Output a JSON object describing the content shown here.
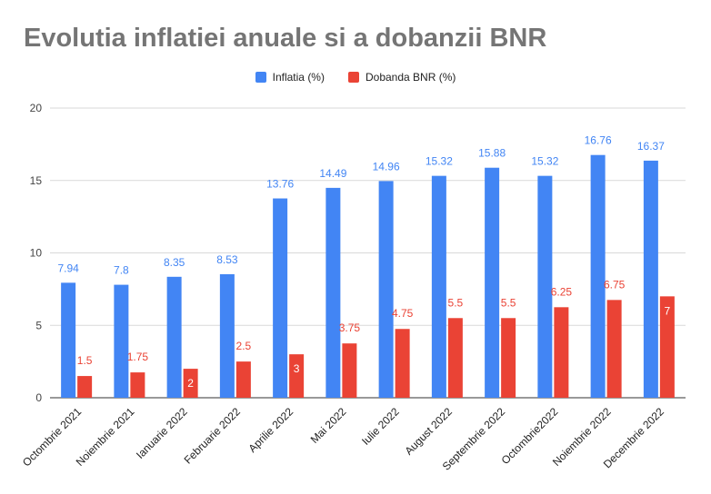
{
  "chart_data": {
    "type": "bar",
    "title": "Evolutia inflatiei anuale si a dobanzii BNR",
    "xlabel": "",
    "ylabel": "",
    "ylim": [
      0,
      20
    ],
    "yticks": [
      0,
      5,
      10,
      15,
      20
    ],
    "grid": true,
    "legend_position": "top",
    "categories": [
      "Octombrie 2021",
      "Noiembrie 2021",
      "Ianuarie 2022",
      "Februarie 2022",
      "Aprilie 2022",
      "Mai 2022",
      "Iulie 2022",
      "August 2022",
      "Septembrie 2022",
      "Octombrie2022",
      "Noiembrie 2022",
      "Decembrie 2022"
    ],
    "series": [
      {
        "name": "Inflatia (%)",
        "color": "#4285F4",
        "values": [
          7.94,
          7.8,
          8.35,
          8.53,
          13.76,
          14.49,
          14.96,
          15.32,
          15.88,
          15.32,
          16.76,
          16.37
        ],
        "labels": [
          "7.94",
          "7.8",
          "8.35",
          "8.53",
          "13.76",
          "14.49",
          "14.96",
          "15.32",
          "15.88",
          "15.32",
          "16.76",
          "16.37"
        ]
      },
      {
        "name": "Dobanda BNR (%)",
        "color": "#EA4335",
        "values": [
          1.5,
          1.75,
          2,
          2.5,
          3,
          3.75,
          4.75,
          5.5,
          5.5,
          6.25,
          6.75,
          7
        ],
        "labels": [
          "1.5",
          "1.75",
          "2",
          "2.5",
          "3",
          "3.75",
          "4.75",
          "5.5",
          "5.5",
          "6.25",
          "6.75",
          "7"
        ]
      }
    ]
  }
}
